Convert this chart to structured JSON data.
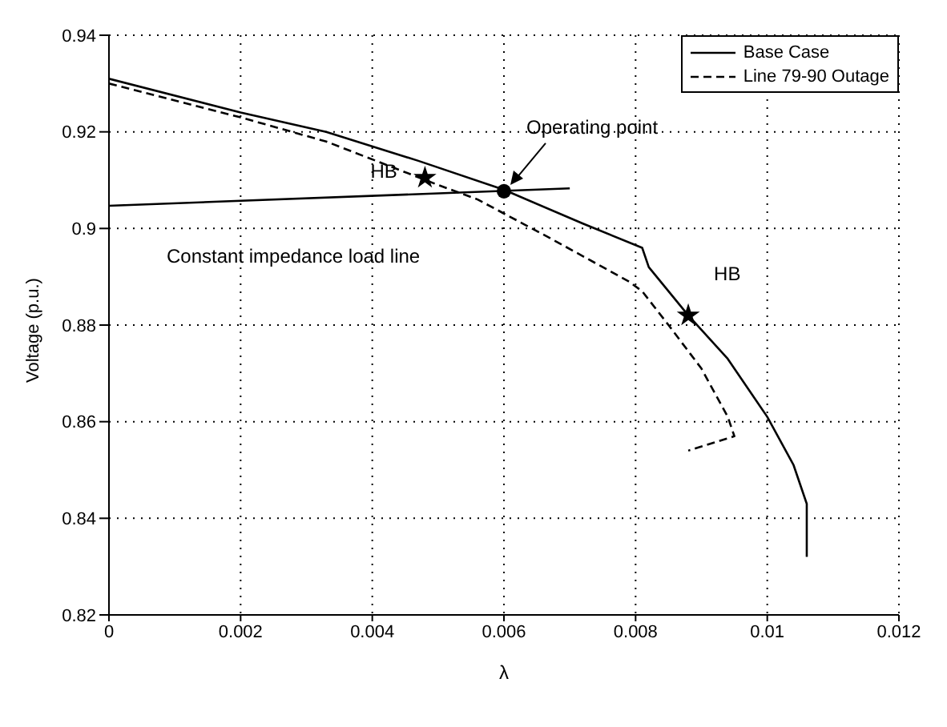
{
  "chart_data": {
    "type": "line",
    "xlabel": "λ",
    "ylabel": "Voltage (p.u.)",
    "xlim": [
      0,
      0.012
    ],
    "xticks": [
      0,
      0.002,
      0.004,
      0.006,
      0.008,
      0.01,
      0.012
    ],
    "ylim": [
      0.82,
      0.94
    ],
    "yticks": [
      0.82,
      0.84,
      0.86,
      0.88,
      0.9,
      0.92,
      0.94
    ],
    "grid": true,
    "legend": "top right",
    "series": [
      {
        "name": "Base Case",
        "color": "#000000",
        "line_style": "solid",
        "marker": "none",
        "x": [
          0,
          0.002,
          0.0033,
          0.0047,
          0.006,
          0.0072,
          0.0081,
          0.0082,
          0.0088,
          0.0094,
          0.01,
          0.0104,
          0.0106,
          0.0106
        ],
        "values": [
          0.931,
          0.924,
          0.92,
          0.914,
          0.908,
          0.901,
          0.896,
          0.892,
          0.882,
          0.873,
          0.861,
          0.851,
          0.843,
          0.832
        ]
      },
      {
        "name": "Line 79-90 Outage",
        "color": "#000000",
        "line_style": "dashed",
        "marker": "none",
        "x": [
          0,
          0.002,
          0.0033,
          0.005,
          0.0056,
          0.0067,
          0.0079,
          0.0081,
          0.0085,
          0.009,
          0.0094,
          0.0095,
          0.0088
        ],
        "values": [
          0.93,
          0.923,
          0.918,
          0.909,
          0.906,
          0.898,
          0.889,
          0.887,
          0.88,
          0.871,
          0.861,
          0.857,
          0.854
        ]
      },
      {
        "type": "line",
        "color": "#000000",
        "line_style": "solid",
        "marker": "none",
        "x": [
          0,
          0.007
        ],
        "values": [
          0.9047,
          0.9083
        ]
      },
      {
        "type": "scatter",
        "color": "#000000",
        "marker": "star",
        "x": [
          0.0048,
          0.0088
        ],
        "values": [
          0.9105,
          0.882
        ]
      },
      {
        "type": "scatter",
        "color": "#000000",
        "marker": "circle",
        "x": [
          0.006
        ],
        "values": [
          0.9077
        ]
      }
    ],
    "annotations": [
      {
        "text": "HB",
        "x": 0.0048,
        "y": 0.9105
      },
      {
        "text": "Operating point",
        "x": 0.006,
        "y": 0.9077
      },
      {
        "text": "HB",
        "x": 0.0088,
        "y": 0.882
      },
      "Constant impedance load line"
    ]
  }
}
